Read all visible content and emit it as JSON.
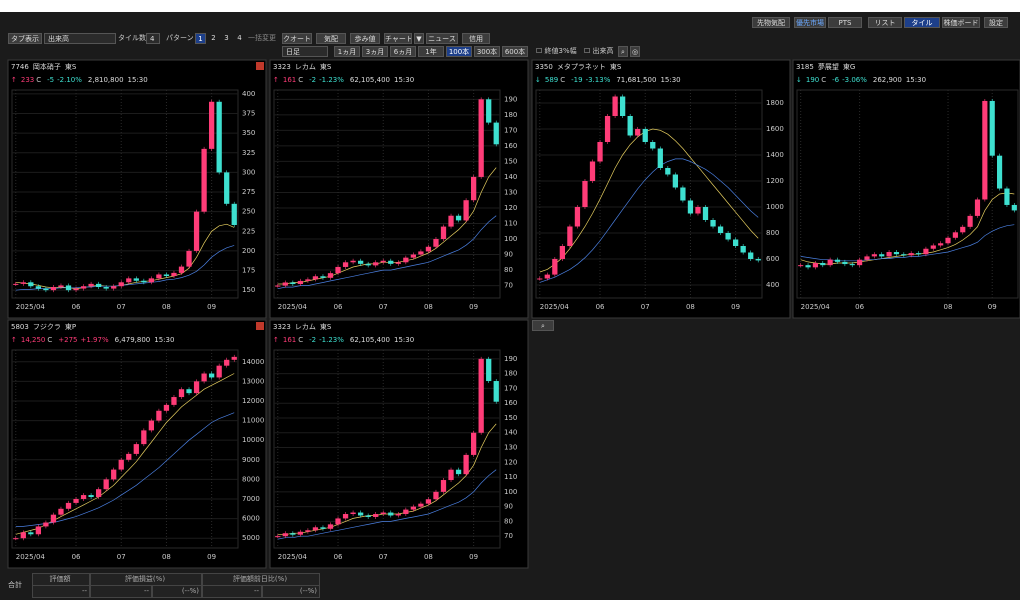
{
  "top_bar": {
    "buttons": [
      "先物気配",
      "優先市場",
      "PTS",
      "リスト",
      "タイル",
      "株価ボード",
      "設定"
    ]
  },
  "toolbar": {
    "tab_label": "タブ表示",
    "tab_select": "出来高",
    "tile_label": "タイル数",
    "tile_count": 4,
    "pattern_label": "パターン",
    "patterns": [
      "1",
      "2",
      "3",
      "4"
    ],
    "bulk_change": "一括変更",
    "views": [
      "クオート",
      "気配",
      "歩み値",
      "チャート"
    ],
    "news": "ニュース",
    "credit": "信用"
  },
  "period_bar": {
    "interval": "日足",
    "ranges": [
      "1ヵ月",
      "3ヵ月",
      "6ヵ月",
      "1年",
      "100本",
      "300本",
      "600本"
    ],
    "checks": [
      "終値3%幅",
      "出来高"
    ]
  },
  "colors": {
    "up": "#ff3c78",
    "down": "#3ee0d0",
    "ma": [
      "#e8d060",
      "#4a7fe0"
    ]
  },
  "panels": [
    {
      "code": "7746",
      "name": "岡本硝子",
      "market": "東S",
      "arrow": "↑",
      "price": "233",
      "flag": "C",
      "change": "-5",
      "pct": "-2.10%",
      "volume": "2,810,800",
      "time": "15:30",
      "ylim": [
        140,
        405
      ],
      "yticks": [
        150,
        175,
        200,
        225,
        250,
        275,
        300,
        325,
        350,
        375,
        400
      ],
      "xticks": [
        {
          "value": 0,
          "label": "2025/04"
        },
        {
          "value": 8,
          "label": "06"
        },
        {
          "value": 14,
          "label": "07"
        },
        {
          "value": 20,
          "label": "08"
        },
        {
          "value": 26,
          "label": "09"
        }
      ],
      "closes": [
        158,
        160,
        155,
        152,
        150,
        154,
        156,
        150,
        152,
        155,
        158,
        154,
        152,
        155,
        160,
        165,
        162,
        160,
        165,
        170,
        168,
        172,
        180,
        200,
        250,
        330,
        390,
        300,
        260,
        233
      ],
      "ma": [
        [
          160,
          159,
          158,
          156,
          154,
          153,
          154,
          153,
          152,
          153,
          155,
          156,
          155,
          155,
          156,
          158,
          160,
          161,
          162,
          164,
          166,
          168,
          171,
          178,
          192,
          210,
          225,
          232,
          234,
          230
        ],
        [
          150,
          151,
          151,
          152,
          152,
          152,
          153,
          153,
          153,
          154,
          154,
          155,
          155,
          155,
          156,
          157,
          158,
          159,
          160,
          161,
          163,
          164,
          166,
          169,
          174,
          182,
          192,
          199,
          204,
          207
        ]
      ]
    },
    {
      "code": "3323",
      "name": "レカム",
      "market": "東S",
      "arrow": "↑",
      "price": "161",
      "flag": "C",
      "change": "-2",
      "pct": "-1.23%",
      "volume": "62,105,400",
      "time": "15:30",
      "ylim": [
        62,
        196
      ],
      "yticks": [
        70,
        80,
        90,
        100,
        110,
        120,
        130,
        140,
        150,
        160,
        170,
        180,
        190
      ],
      "xticks": [
        {
          "value": 0,
          "label": "2025/04"
        },
        {
          "value": 8,
          "label": "06"
        },
        {
          "value": 14,
          "label": "07"
        },
        {
          "value": 20,
          "label": "08"
        },
        {
          "value": 26,
          "label": "09"
        }
      ],
      "closes": [
        70,
        72,
        71,
        73,
        74,
        76,
        75,
        78,
        82,
        85,
        86,
        84,
        83,
        85,
        86,
        84,
        85,
        88,
        90,
        92,
        95,
        100,
        108,
        115,
        112,
        125,
        140,
        190,
        175,
        161
      ],
      "ma": [
        [
          71,
          71,
          72,
          72,
          73,
          74,
          75,
          76,
          78,
          80,
          82,
          83,
          84,
          84,
          85,
          85,
          85,
          86,
          87,
          89,
          91,
          94,
          98,
          102,
          106,
          111,
          118,
          130,
          140,
          146
        ],
        [
          68,
          69,
          69,
          70,
          70,
          71,
          72,
          73,
          74,
          75,
          76,
          77,
          78,
          79,
          80,
          80,
          81,
          82,
          83,
          84,
          85,
          87,
          89,
          91,
          93,
          96,
          100,
          106,
          111,
          115
        ]
      ]
    },
    {
      "code": "3350",
      "name": "メタプラネット",
      "market": "東S",
      "arrow": "↓",
      "price": "589",
      "flag": "C",
      "change": "-19",
      "pct": "-3.13%",
      "volume": "71,681,500",
      "time": "15:30",
      "ylim": [
        300,
        1900
      ],
      "yticks": [
        400,
        600,
        800,
        1000,
        1200,
        1400,
        1600,
        1800
      ],
      "xticks": [
        {
          "value": 0,
          "label": "2025/04"
        },
        {
          "value": 8,
          "label": "06"
        },
        {
          "value": 14,
          "label": "07"
        },
        {
          "value": 20,
          "label": "08"
        },
        {
          "value": 26,
          "label": "09"
        }
      ],
      "closes": [
        450,
        480,
        600,
        700,
        850,
        1000,
        1200,
        1350,
        1500,
        1700,
        1850,
        1700,
        1550,
        1600,
        1500,
        1450,
        1300,
        1250,
        1150,
        1050,
        950,
        1000,
        900,
        850,
        800,
        750,
        700,
        650,
        600,
        589
      ],
      "ma": [
        [
          500,
          520,
          560,
          610,
          680,
          760,
          850,
          950,
          1060,
          1180,
          1300,
          1400,
          1480,
          1540,
          1580,
          1600,
          1590,
          1560,
          1510,
          1450,
          1380,
          1310,
          1240,
          1170,
          1100,
          1030,
          960,
          890,
          820,
          760
        ],
        [
          420,
          440,
          460,
          490,
          520,
          560,
          610,
          670,
          740,
          820,
          900,
          980,
          1060,
          1140,
          1210,
          1270,
          1320,
          1350,
          1370,
          1370,
          1350,
          1320,
          1290,
          1250,
          1200,
          1150,
          1090,
          1030,
          970,
          920
        ]
      ]
    },
    {
      "code": "3185",
      "name": "夢展望",
      "market": "東G",
      "arrow": "↓",
      "price": "190",
      "flag": "C",
      "change": "-6",
      "pct": "-3.06%",
      "volume": "262,900",
      "time": "15:30",
      "ylim": [
        110,
        300
      ],
      "xticks": [
        {
          "value": 0,
          "label": "2025/04"
        },
        {
          "value": 8,
          "label": "06"
        },
        {
          "value": 20,
          "label": "08"
        },
        {
          "value": 26,
          "label": "09"
        }
      ],
      "closes": [
        140,
        138,
        142,
        140,
        145,
        143,
        141,
        140,
        145,
        148,
        150,
        148,
        152,
        150,
        149,
        151,
        150,
        155,
        158,
        160,
        165,
        170,
        175,
        185,
        200,
        290,
        240,
        210,
        195,
        190
      ],
      "ma": [
        [
          145,
          143,
          142,
          141,
          141,
          142,
          142,
          142,
          143,
          144,
          145,
          146,
          147,
          148,
          149,
          150,
          150,
          151,
          152,
          154,
          156,
          159,
          163,
          168,
          175,
          190,
          200,
          205,
          206,
          205
        ],
        [
          148,
          147,
          146,
          145,
          145,
          144,
          144,
          144,
          144,
          145,
          145,
          146,
          146,
          147,
          147,
          148,
          148,
          149,
          150,
          151,
          152,
          154,
          156,
          158,
          161,
          167,
          171,
          174,
          176,
          177
        ]
      ]
    },
    {
      "code": "5803",
      "name": "フジクラ",
      "market": "東P",
      "arrow": "↑",
      "price": "14,250",
      "flag": "C",
      "change": "+275",
      "pct": "+1.97%",
      "volume": "6,479,800",
      "time": "15:30",
      "ylim": [
        4500,
        14600
      ],
      "yticks": [
        5000,
        6000,
        7000,
        8000,
        9000,
        10000,
        11000,
        12000,
        13000,
        14000
      ],
      "xticks": [
        {
          "value": 0,
          "label": "2025/04"
        },
        {
          "value": 8,
          "label": "06"
        },
        {
          "value": 14,
          "label": "07"
        },
        {
          "value": 20,
          "label": "08"
        },
        {
          "value": 26,
          "label": "09"
        }
      ],
      "closes": [
        5000,
        5300,
        5200,
        5600,
        5800,
        6200,
        6500,
        6800,
        7000,
        7200,
        7100,
        7500,
        8000,
        8500,
        9000,
        9300,
        9800,
        10500,
        11000,
        11500,
        11800,
        12200,
        12600,
        12400,
        13000,
        13400,
        13200,
        13800,
        14100,
        14250
      ],
      "ma": [
        [
          5200,
          5300,
          5400,
          5500,
          5700,
          5900,
          6100,
          6300,
          6500,
          6700,
          6900,
          7100,
          7400,
          7700,
          8100,
          8500,
          8900,
          9400,
          9900,
          10400,
          10900,
          11300,
          11700,
          12000,
          12300,
          12600,
          12800,
          13000,
          13200,
          13400
        ],
        [
          5600,
          5600,
          5650,
          5700,
          5750,
          5800,
          5900,
          6000,
          6100,
          6250,
          6400,
          6550,
          6750,
          6950,
          7200,
          7450,
          7700,
          8000,
          8300,
          8600,
          8950,
          9300,
          9650,
          10000,
          10300,
          10600,
          10900,
          11100,
          11250,
          11400
        ]
      ]
    },
    {
      "code": "3323",
      "name": "レカム",
      "market": "東S",
      "arrow": "↑",
      "price": "161",
      "flag": "C",
      "change": "-2",
      "pct": "-1.23%",
      "volume": "62,105,400",
      "time": "15:30",
      "ylim": [
        62,
        196
      ],
      "yticks": [
        70,
        80,
        90,
        100,
        110,
        120,
        130,
        140,
        150,
        160,
        170,
        180,
        190
      ],
      "xticks": [
        {
          "value": 0,
          "label": "2025/04"
        },
        {
          "value": 8,
          "label": "06"
        },
        {
          "value": 14,
          "label": "07"
        },
        {
          "value": 20,
          "label": "08"
        },
        {
          "value": 26,
          "label": "09"
        }
      ],
      "closes": [
        70,
        72,
        71,
        73,
        74,
        76,
        75,
        78,
        82,
        85,
        86,
        84,
        83,
        85,
        86,
        84,
        85,
        88,
        90,
        92,
        95,
        100,
        108,
        115,
        112,
        125,
        140,
        190,
        175,
        161
      ],
      "ma": [
        [
          71,
          71,
          72,
          72,
          73,
          74,
          75,
          76,
          78,
          80,
          82,
          83,
          84,
          84,
          85,
          85,
          85,
          86,
          87,
          89,
          91,
          94,
          98,
          102,
          106,
          111,
          118,
          130,
          140,
          146
        ],
        [
          68,
          69,
          69,
          70,
          70,
          71,
          72,
          73,
          74,
          75,
          76,
          77,
          78,
          79,
          80,
          80,
          81,
          82,
          83,
          84,
          85,
          87,
          89,
          91,
          93,
          96,
          100,
          106,
          111,
          115
        ]
      ]
    }
  ],
  "summary": {
    "label": "合計",
    "headers": [
      "評価額",
      "評価損益(%)",
      "評価額前日比(%)"
    ],
    "cells": [
      "--",
      "--",
      "(--%)",
      "--",
      "(--%)"
    ]
  }
}
